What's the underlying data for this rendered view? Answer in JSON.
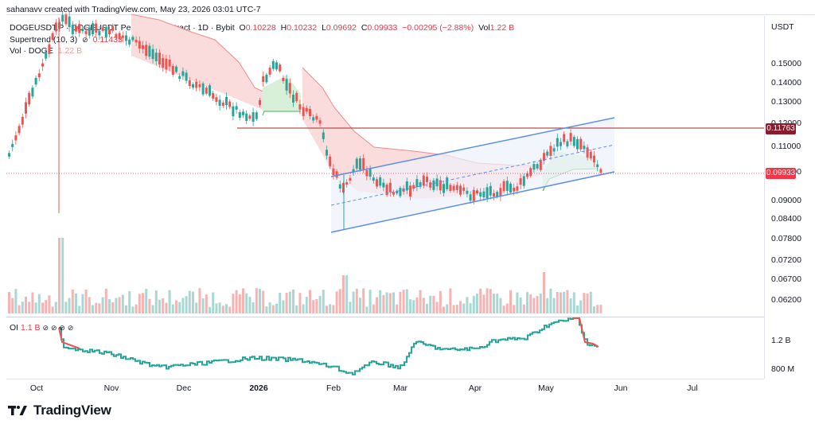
{
  "header": {
    "author_line": "sahanavv created with TradingView.com, May 23, 2026 03:01 UTC-7"
  },
  "legend": {
    "symbol": "DOGEUSDT.P · DOGEUSDT Perpetual Contract · 1D · Bybit",
    "o_label": "O",
    "o_value": "0.10228",
    "h_label": "H",
    "h_value": "0.10232",
    "l_label": "L",
    "l_value": "0.09692",
    "c_label": "C",
    "c_value": "0.09933",
    "change": "−0.00295 (−2.88%)",
    "vol_label": "Vol",
    "vol_value": "1.22 B",
    "supertrend_label": "Supertrend (10, 3)",
    "supertrend_icon": "eye-off-icon",
    "supertrend_value": "0.11433",
    "volume_label": "Vol · DOGE",
    "volume_value": "1.22 B"
  },
  "oi_legend": {
    "label": "OI",
    "value": "1.1 B",
    "icons": [
      "eye-off-icon",
      "eye-off-icon",
      "eye-off-icon",
      "eye-off-icon"
    ]
  },
  "price_axis": {
    "currency": "USDT",
    "ticks": [
      "0.15000",
      "0.14000",
      "0.13000",
      "0.12000",
      "0.11000",
      "0.10000",
      "0.09000",
      "0.08400",
      "0.07800",
      "0.07200",
      "0.06700",
      "0.06200"
    ],
    "resistance_tag": "0.11763",
    "last_price_tag": "0.09933"
  },
  "oi_axis": {
    "ticks": [
      "1.2 B",
      "800 M"
    ]
  },
  "time_axis": {
    "labels": [
      "Oct",
      "Nov",
      "Dec",
      "2026",
      "Feb",
      "Mar",
      "Apr",
      "May",
      "Jun",
      "Jul"
    ]
  },
  "brand": {
    "name": "TradingView"
  },
  "colors": {
    "up": "#26a69a",
    "down": "#ef5350",
    "channel": "#5b8def",
    "resistance": "#b2504f",
    "supertrend_down": "#f7b7b7",
    "supertrend_up": "#cdebcf",
    "tag_red": "#f23645",
    "tag_dark": "#8b1c2c"
  }
}
